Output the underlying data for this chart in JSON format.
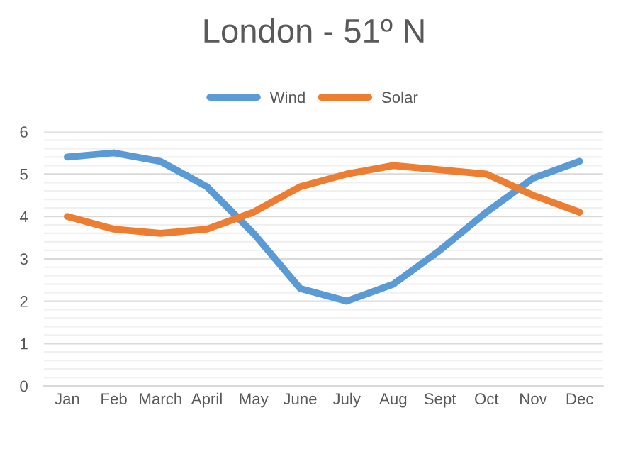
{
  "chart_data": {
    "type": "line",
    "title": "London - 51º N",
    "categories": [
      "Jan",
      "Feb",
      "March",
      "April",
      "May",
      "June",
      "July",
      "Aug",
      "Sept",
      "Oct",
      "Nov",
      "Dec"
    ],
    "series": [
      {
        "name": "Wind",
        "color": "#5b9bd5",
        "values": [
          5.4,
          5.5,
          5.3,
          4.7,
          3.6,
          2.3,
          2.0,
          2.4,
          3.2,
          4.1,
          4.9,
          5.3
        ]
      },
      {
        "name": "Solar",
        "color": "#ed7d31",
        "values": [
          4.0,
          3.7,
          3.6,
          3.7,
          4.1,
          4.7,
          5.0,
          5.2,
          5.1,
          5.0,
          4.5,
          4.1
        ]
      }
    ],
    "ylim": [
      0,
      6
    ],
    "yticks": [
      0,
      {
        "value": 0.2,
        "label": null
      },
      {
        "value": 0.4,
        "label": null
      },
      {
        "value": 0.6,
        "label": null
      },
      {
        "value": 0.8,
        "label": null
      },
      1,
      {
        "value": 1.2,
        "label": null
      },
      {
        "value": 1.4,
        "label": null
      },
      {
        "value": 1.6,
        "label": null
      },
      {
        "value": 1.8,
        "label": null
      },
      2,
      {
        "value": 2.2,
        "label": null
      },
      {
        "value": 2.4,
        "label": null
      },
      {
        "value": 2.6,
        "label": null
      },
      {
        "value": 2.8,
        "label": null
      },
      3,
      {
        "value": 3.2,
        "label": null
      },
      {
        "value": 3.4,
        "label": null
      },
      {
        "value": 3.6,
        "label": null
      },
      {
        "value": 3.8,
        "label": null
      },
      4,
      {
        "value": 4.2,
        "label": null
      },
      {
        "value": 4.4,
        "label": null
      },
      {
        "value": 4.6,
        "label": null
      },
      {
        "value": 4.8,
        "label": null
      },
      5,
      {
        "value": 5.2,
        "label": null
      },
      {
        "value": 5.4,
        "label": null
      },
      {
        "value": 5.6,
        "label": null
      },
      {
        "value": 5.8,
        "label": null
      },
      6
    ],
    "grid": "y",
    "legend": "top",
    "marker": "none",
    "line_style": "solid"
  }
}
